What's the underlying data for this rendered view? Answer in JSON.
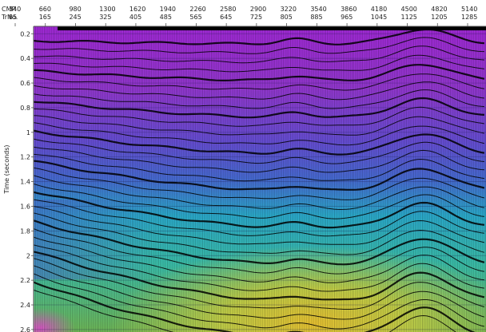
{
  "header": {
    "cmp_label": "CMP",
    "trno_label": "TrNo."
  },
  "chart_data": {
    "type": "heatmap",
    "title": "",
    "xlabel": "",
    "ylabel": "Time (seconds)",
    "x_axis_top": {
      "cmp": [
        "340",
        "660",
        "980",
        "1300",
        "1620",
        "1940",
        "2260",
        "2580",
        "2900",
        "3220",
        "3540",
        "3860",
        "4180",
        "4500",
        "4820",
        "5140"
      ],
      "trno": [
        "85",
        "165",
        "245",
        "325",
        "405",
        "485",
        "565",
        "645",
        "725",
        "805",
        "885",
        "965",
        "1045",
        "1125",
        "1205",
        "1285"
      ]
    },
    "y_ticks": [
      "0.2",
      "0.4",
      "0.6",
      "0.8",
      "1",
      "1.2",
      "1.4",
      "1.6",
      "1.8",
      "2",
      "2.2",
      "2.4",
      "2.6"
    ],
    "y_tick_values": [
      0.2,
      0.4,
      0.6,
      0.8,
      1.0,
      1.2,
      1.4,
      1.6,
      1.8,
      2.0,
      2.2,
      2.4,
      2.6
    ],
    "trno_range": [
      85,
      1285
    ],
    "time_range_seconds": [
      0.14,
      2.62
    ],
    "y_direction": "downward",
    "background": "interval velocity color overlay under wiggle-trace seismic display",
    "colors": {
      "shallow": "#b02ad8",
      "mid_upper": "#6a4fe0",
      "mid": "#2fb7d8",
      "deep": "#c7d64a",
      "deepest_center": "#f0cf3a",
      "wiggle": "#000000"
    }
  }
}
